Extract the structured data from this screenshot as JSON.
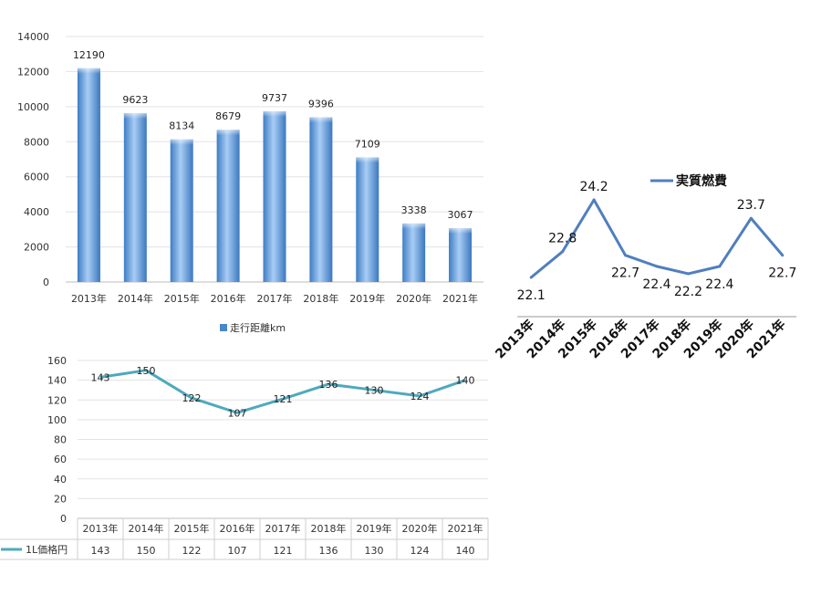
{
  "chart_data": [
    {
      "type": "bar",
      "categories": [
        "2013年",
        "2014年",
        "2015年",
        "2016年",
        "2017年",
        "2018年",
        "2019年",
        "2020年",
        "2021年"
      ],
      "series": [
        {
          "name": "走行距離km",
          "values": [
            12190,
            9623,
            8134,
            8679,
            9737,
            9396,
            7109,
            3338,
            3067
          ]
        }
      ],
      "ylim": [
        0,
        14000
      ],
      "yticks": [
        0,
        2000,
        4000,
        6000,
        8000,
        10000,
        12000,
        14000
      ],
      "grid": true,
      "legend": "bottom",
      "bar_color": "#4a86c8"
    },
    {
      "type": "line",
      "categories": [
        "2013年",
        "2014年",
        "2015年",
        "2016年",
        "2017年",
        "2018年",
        "2019年",
        "2020年",
        "2021年"
      ],
      "series": [
        {
          "name": "実質燃費",
          "values": [
            22.1,
            22.8,
            24.2,
            22.7,
            22.4,
            22.2,
            22.4,
            23.7,
            22.7
          ]
        }
      ],
      "grid": false,
      "legend": "top",
      "line_color": "#4f7fbe"
    },
    {
      "type": "line",
      "categories": [
        "2013年",
        "2014年",
        "2015年",
        "2016年",
        "2017年",
        "2018年",
        "2019年",
        "2020年",
        "2021年"
      ],
      "series": [
        {
          "name": "1L価格円",
          "values": [
            143,
            150,
            122,
            107,
            121,
            136,
            130,
            124,
            140
          ]
        }
      ],
      "ylim": [
        0,
        160
      ],
      "yticks": [
        0,
        20,
        40,
        60,
        80,
        100,
        120,
        140,
        160
      ],
      "grid": true,
      "legend": "data-table",
      "line_color": "#4fa9bd"
    }
  ]
}
